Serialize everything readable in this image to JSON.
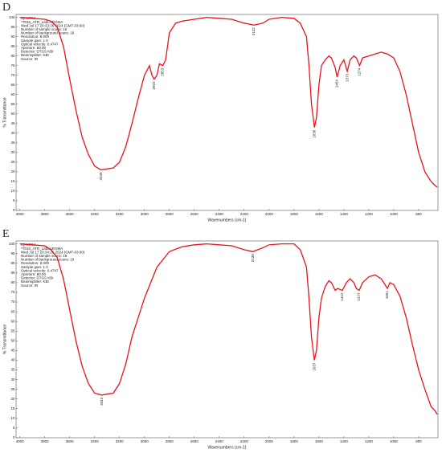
{
  "chart_data": [
    {
      "type": "line",
      "title": "D",
      "xlabel": "Wavenumbers (cm-1)",
      "ylabel": "% Transmittance",
      "color": "#e8141c",
      "info": [
        "IQ-UFRJ",
        "*T016_ATR_LabLAROMA",
        "Wed Jul 17 20:33:16 2024 (GMT-03:00)",
        "Number of sample scans: 16",
        "Number of background scans: 16",
        "Resolution: 8.000",
        "Sample gain: 1.0",
        "Optical velocity: 0.4747",
        "Aperture: 60.00",
        "Detector: DTGS KBr",
        "Beamsplitter: KBr",
        "Source: IR"
      ],
      "xlim": [
        4030,
        645
      ],
      "ylim": [
        0,
        101.5
      ],
      "xticks": [
        4000,
        3800,
        3600,
        3400,
        3200,
        3000,
        2800,
        2600,
        2400,
        2200,
        2000,
        1800,
        1600,
        1400,
        1200,
        1000,
        800
      ],
      "yticks": [
        0,
        5,
        10,
        15,
        20,
        25,
        30,
        35,
        40,
        45,
        50,
        55,
        60,
        65,
        70,
        75,
        80,
        85,
        90,
        95,
        100
      ],
      "x": [
        4000,
        3900,
        3800,
        3750,
        3700,
        3650,
        3600,
        3550,
        3500,
        3450,
        3400,
        3349,
        3300,
        3250,
        3200,
        3150,
        3100,
        3050,
        3000,
        2960,
        2940,
        2922,
        2900,
        2880,
        2853,
        2830,
        2800,
        2750,
        2700,
        2600,
        2500,
        2400,
        2300,
        2200,
        2122,
        2050,
        2000,
        1900,
        1800,
        1750,
        1700,
        1680,
        1660,
        1636,
        1620,
        1600,
        1580,
        1550,
        1520,
        1500,
        1470,
        1454,
        1430,
        1400,
        1373,
        1350,
        1320,
        1300,
        1274,
        1250,
        1200,
        1150,
        1100,
        1050,
        1000,
        950,
        900,
        850,
        800,
        750,
        700,
        670,
        650
      ],
      "values": [
        100,
        99.5,
        99,
        98,
        95,
        85,
        68,
        52,
        38,
        29,
        23,
        21,
        21.5,
        22,
        25,
        33,
        45,
        58,
        70,
        75,
        70,
        68,
        70,
        76,
        75,
        78,
        92,
        97,
        98,
        99,
        100,
        99.5,
        99,
        97,
        96,
        97,
        99,
        100,
        99.5,
        97,
        90,
        75,
        55,
        43,
        48,
        65,
        75,
        78,
        80,
        79,
        74,
        69,
        75,
        78,
        72,
        78,
        80,
        79,
        75,
        79,
        80,
        81,
        82,
        81,
        79,
        72,
        60,
        45,
        30,
        20,
        15,
        13,
        12
      ],
      "annotations": [
        {
          "x": 3349,
          "y": 21
        },
        {
          "x": 2922,
          "y": 68
        },
        {
          "x": 2853,
          "y": 75
        },
        {
          "x": 2122,
          "y": 96
        },
        {
          "x": 1636,
          "y": 43
        },
        {
          "x": 1454,
          "y": 69
        },
        {
          "x": 1373,
          "y": 72
        },
        {
          "x": 1274,
          "y": 75
        }
      ]
    },
    {
      "type": "line",
      "title": "E",
      "xlabel": "Wavenumbers (cm-1)",
      "ylabel": "% Transmittance",
      "color": "#e8141c",
      "info": [
        "IQ-UFRJ",
        "*T015_ATR_LabLAROMA",
        "Wed Jul 17 20:34:26 2024 (GMT-03:00)",
        "Number of sample scans: 16",
        "Number of background scans: 16",
        "Resolution: 8.000",
        "Sample gain: 1.0",
        "Optical velocity: 0.4747",
        "Aperture: 80.00",
        "Detector: DTGS KBr",
        "Beamsplitter: KBr",
        "Source: IR"
      ],
      "xlim": [
        4030,
        645
      ],
      "ylim": [
        0,
        101.5
      ],
      "xticks": [
        4000,
        3800,
        3600,
        3400,
        3200,
        3000,
        2800,
        2600,
        2400,
        2200,
        2000,
        1800,
        1600,
        1400,
        1200,
        1000,
        800
      ],
      "yticks": [
        0,
        5,
        10,
        15,
        20,
        25,
        30,
        35,
        40,
        45,
        50,
        55,
        60,
        65,
        70,
        75,
        80,
        85,
        90,
        95,
        100
      ],
      "x": [
        4000,
        3900,
        3800,
        3750,
        3700,
        3650,
        3600,
        3550,
        3500,
        3450,
        3400,
        3342,
        3300,
        3250,
        3200,
        3150,
        3100,
        3000,
        2900,
        2800,
        2700,
        2600,
        2500,
        2400,
        2300,
        2200,
        2130,
        2050,
        2000,
        1900,
        1800,
        1750,
        1700,
        1680,
        1660,
        1637,
        1620,
        1600,
        1580,
        1550,
        1520,
        1500,
        1470,
        1450,
        1412,
        1380,
        1350,
        1320,
        1300,
        1277,
        1250,
        1200,
        1150,
        1100,
        1080,
        1051,
        1030,
        1000,
        950,
        900,
        850,
        800,
        750,
        700,
        670,
        650
      ],
      "values": [
        100,
        99.5,
        99,
        97,
        93,
        82,
        66,
        50,
        37,
        28,
        23,
        22,
        22.5,
        23,
        28,
        38,
        52,
        72,
        88,
        96,
        98.5,
        99.5,
        100,
        99.5,
        99,
        97,
        96,
        98,
        99.5,
        100,
        100,
        97,
        88,
        72,
        52,
        40,
        45,
        62,
        72,
        78,
        81,
        80,
        76,
        77,
        76,
        80,
        82,
        80,
        77,
        76,
        80,
        83,
        84,
        82,
        80,
        77,
        80,
        79,
        73,
        62,
        48,
        35,
        25,
        16,
        14,
        12
      ],
      "annotations": [
        {
          "x": 3342,
          "y": 22
        },
        {
          "x": 2130,
          "y": 96
        },
        {
          "x": 1637,
          "y": 40
        },
        {
          "x": 1412,
          "y": 76
        },
        {
          "x": 1277,
          "y": 76
        },
        {
          "x": 1051,
          "y": 77
        }
      ]
    }
  ]
}
